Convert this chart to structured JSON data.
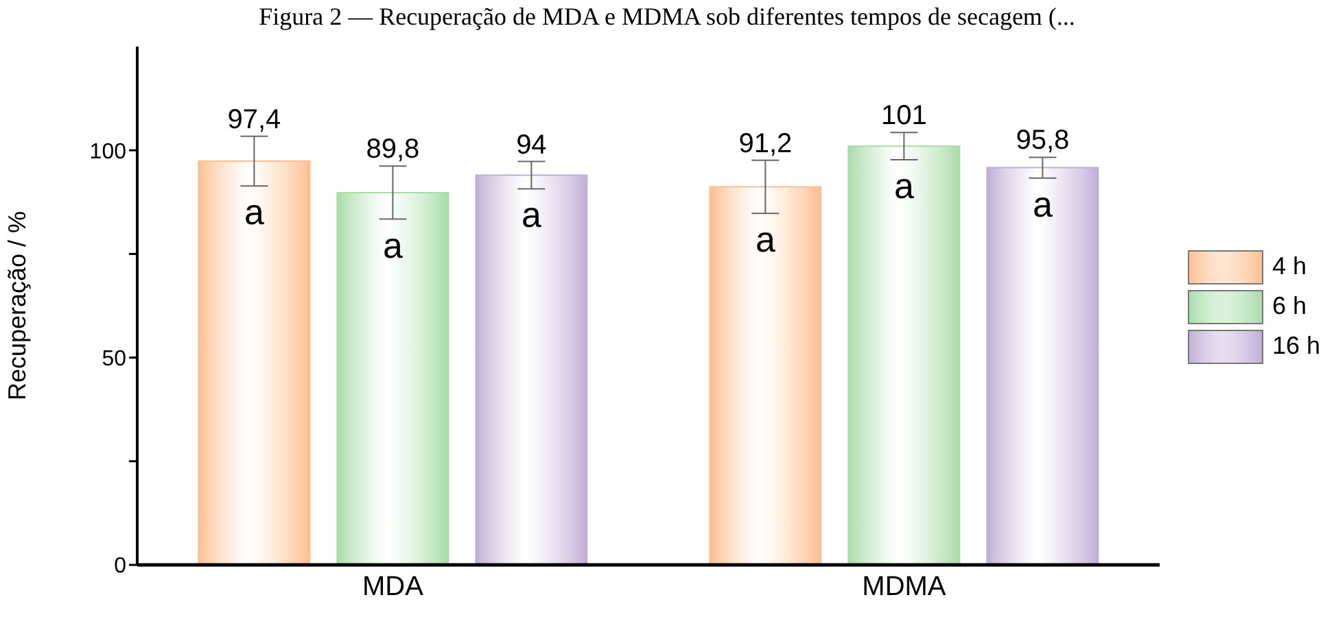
{
  "chart_data": {
    "type": "bar",
    "title": "Figura 2 — Recuperação de MDA e MDMA sob diferentes tempos de secagem (...",
    "ylabel": "Recuperação / %",
    "categories": [
      "MDA",
      "MDMA"
    ],
    "series": [
      {
        "name": "4 h",
        "color": "#fdbf8f",
        "values": [
          97.4,
          91.2
        ],
        "errors": [
          6,
          6.4
        ],
        "value_labels": [
          "97,4",
          "91,2"
        ]
      },
      {
        "name": "6 h",
        "color": "#a8dca8",
        "values": [
          89.8,
          101
        ],
        "errors": [
          6.4,
          3.3
        ],
        "value_labels": [
          "89,8",
          "101"
        ]
      },
      {
        "name": "16 h",
        "color": "#bfaed6",
        "values": [
          94,
          95.8
        ],
        "errors": [
          3.3,
          2.5
        ],
        "value_labels": [
          "94",
          "95,8"
        ]
      }
    ],
    "ylim": [
      0,
      125
    ],
    "yticks": [
      0,
      {
        "value": 25,
        "label": null
      },
      50,
      {
        "value": 75,
        "label": null
      },
      100
    ],
    "legend": "right",
    "grid": false,
    "annotations": [
      "a",
      "a",
      "a",
      "a",
      "a",
      "a"
    ]
  }
}
